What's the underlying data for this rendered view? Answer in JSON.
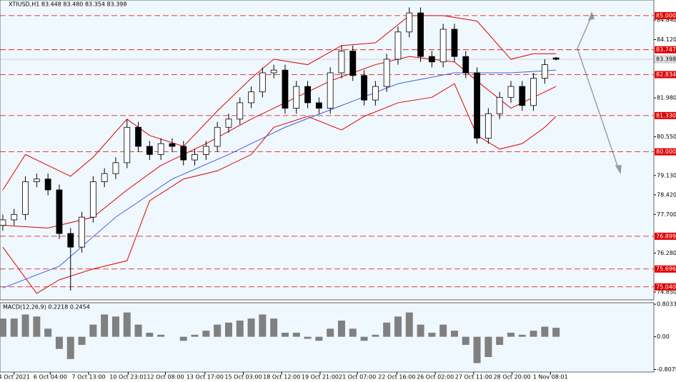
{
  "chart_data": [
    {
      "type": "candlestick",
      "title": "XTIUSD,H1 83.448 83.480 83.354 83.398",
      "x": [
        0,
        1,
        2,
        3,
        4,
        5,
        6,
        7,
        8,
        9,
        10,
        11,
        12,
        13,
        14,
        15,
        16,
        17,
        18,
        19,
        20,
        21,
        22,
        23,
        24,
        25,
        26,
        27,
        28,
        29,
        30,
        31,
        32,
        33,
        34,
        35,
        36,
        37,
        38,
        39,
        40,
        41,
        42,
        43,
        44,
        45,
        46,
        47,
        48,
        49
      ],
      "open": [
        77.3,
        77.5,
        77.7,
        78.9,
        79.0,
        78.6,
        77.0,
        76.5,
        77.6,
        78.9,
        79.2,
        79.6,
        80.9,
        80.2,
        79.9,
        80.3,
        80.2,
        79.7,
        79.9,
        80.2,
        80.9,
        81.2,
        81.8,
        82.2,
        82.9,
        83.0,
        81.6,
        82.4,
        81.8,
        81.6,
        82.9,
        83.7,
        82.8,
        81.9,
        82.4,
        83.4,
        84.4,
        85.1,
        83.5,
        83.3,
        84.5,
        83.5,
        82.9,
        80.5,
        81.4,
        82.0,
        82.4,
        81.7,
        82.7,
        83.448
      ],
      "high": [
        77.7,
        77.9,
        79.1,
        79.2,
        79.2,
        78.8,
        77.2,
        77.8,
        79.1,
        79.4,
        79.8,
        81.2,
        81.1,
        80.4,
        80.5,
        80.5,
        80.4,
        80.1,
        80.4,
        81.1,
        81.4,
        82.0,
        82.4,
        83.1,
        83.2,
        83.2,
        82.6,
        82.6,
        82.0,
        83.1,
        83.9,
        83.9,
        83.0,
        82.6,
        83.6,
        84.6,
        85.3,
        85.3,
        83.7,
        84.7,
        84.7,
        83.7,
        83.1,
        81.6,
        82.2,
        82.6,
        82.6,
        82.9,
        83.4,
        83.48
      ],
      "low": [
        77.1,
        77.3,
        77.5,
        78.7,
        78.4,
        76.8,
        74.9,
        76.3,
        77.4,
        78.7,
        79.0,
        79.4,
        80.0,
        79.7,
        79.7,
        80.0,
        79.5,
        79.5,
        79.7,
        80.0,
        80.7,
        81.0,
        81.6,
        82.0,
        82.7,
        81.4,
        81.4,
        81.6,
        81.4,
        81.4,
        82.7,
        82.6,
        81.7,
        81.7,
        82.2,
        83.2,
        84.2,
        83.3,
        83.1,
        83.1,
        83.3,
        82.7,
        80.3,
        80.3,
        81.2,
        81.8,
        81.5,
        81.5,
        82.5,
        83.354
      ],
      "close": [
        77.5,
        77.7,
        78.9,
        79.0,
        78.6,
        77.0,
        76.5,
        77.6,
        78.9,
        79.2,
        79.6,
        80.9,
        80.2,
        79.9,
        80.3,
        80.2,
        79.7,
        79.9,
        80.2,
        80.9,
        81.2,
        81.8,
        82.2,
        82.9,
        83.0,
        81.6,
        82.4,
        81.8,
        81.6,
        82.9,
        83.7,
        82.8,
        81.9,
        82.4,
        83.4,
        84.4,
        85.1,
        83.5,
        83.3,
        84.5,
        83.5,
        82.9,
        80.5,
        81.4,
        82.0,
        82.4,
        81.7,
        82.7,
        83.2,
        83.398
      ],
      "lines": [
        {
          "color": "#e00000",
          "x": [
            0,
            2,
            4,
            6,
            8,
            11,
            13,
            16,
            19,
            22,
            24,
            27,
            30,
            33,
            36,
            39,
            42,
            45,
            47,
            49
          ],
          "values": [
            78.6,
            79.9,
            79.5,
            79.1,
            79.8,
            81.2,
            80.6,
            80.2,
            81.5,
            82.7,
            83.4,
            83.2,
            83.9,
            84.0,
            85.0,
            85.0,
            84.8,
            83.4,
            83.6,
            83.6
          ]
        },
        {
          "color": "#e00000",
          "x": [
            0,
            4,
            8,
            11,
            14,
            18,
            22,
            25,
            29,
            33,
            36,
            40,
            42,
            45,
            47,
            49
          ],
          "values": [
            77.3,
            77.2,
            77.6,
            78.6,
            79.5,
            80.3,
            81.2,
            81.8,
            82.6,
            83.2,
            83.5,
            83.3,
            82.6,
            81.6,
            82.0,
            82.4
          ]
        },
        {
          "color": "#e00000",
          "x": [
            0,
            3,
            5,
            8,
            11,
            13,
            16,
            19,
            22,
            24,
            27,
            30,
            32,
            35,
            38,
            40,
            42,
            44,
            46,
            48,
            49
          ],
          "values": [
            76.5,
            74.8,
            75.3,
            75.7,
            76.0,
            78.2,
            79.0,
            79.3,
            79.9,
            80.9,
            81.3,
            80.8,
            81.3,
            81.8,
            82.0,
            82.5,
            80.6,
            80.1,
            80.3,
            80.9,
            81.3
          ]
        },
        {
          "color": "#4060e0",
          "x": [
            0,
            5,
            10,
            15,
            20,
            25,
            30,
            35,
            40,
            45,
            49
          ],
          "values": [
            75.0,
            75.8,
            77.6,
            79.0,
            79.9,
            80.9,
            81.7,
            82.5,
            82.9,
            82.9,
            83.0
          ]
        }
      ],
      "levels": [
        {
          "value": 85.0,
          "label": "85.000"
        },
        {
          "value": 83.747,
          "label": "83.747"
        },
        {
          "value": 82.834,
          "label": "82.834"
        },
        {
          "value": 81.33,
          "label": "81.330"
        },
        {
          "value": 80.0,
          "label": "80.000"
        },
        {
          "value": 76.899,
          "label": "76.899"
        },
        {
          "value": 75.696,
          "label": "75.696"
        },
        {
          "value": 75.04,
          "label": "75.040"
        }
      ],
      "level_color": "#e00000",
      "last_price": {
        "value": 83.398,
        "label": "83.398"
      },
      "xlim": [
        -0.25,
        57.66
      ],
      "ylim": [
        74.562,
        85.574
      ],
      "yticks": [
        {
          "value": 84.84,
          "label": "84.840"
        },
        {
          "value": 84.12,
          "label": "84.120"
        },
        {
          "value": 81.98,
          "label": "81.980"
        },
        {
          "value": 80.55,
          "label": "80.550"
        },
        {
          "value": 79.13,
          "label": "79.130"
        },
        {
          "value": 78.42,
          "label": "78.420"
        },
        {
          "value": 77.7,
          "label": "77.700"
        },
        {
          "value": 76.28,
          "label": "76.280"
        },
        {
          "value": 74.85,
          "label": "74.850"
        }
      ],
      "xticks": [
        {
          "value": 1.0,
          "label": "4 Oct 2021"
        },
        {
          "value": 4.2,
          "label": "6 Oct 04:00"
        },
        {
          "value": 7.6,
          "label": "7 Oct 13:00"
        },
        {
          "value": 11.1,
          "label": "10 Oct 23:01"
        },
        {
          "value": 14.4,
          "label": "12 Oct 08:00"
        },
        {
          "value": 17.9,
          "label": "13 Oct 17:00"
        },
        {
          "value": 21.3,
          "label": "15 Oct 03:00"
        },
        {
          "value": 24.7,
          "label": "18 Oct 12:00"
        },
        {
          "value": 28.1,
          "label": "19 Oct 21:00"
        },
        {
          "value": 31.4,
          "label": "21 Oct 07:00"
        },
        {
          "value": 34.9,
          "label": "22 Oct 16:00"
        },
        {
          "value": 38.3,
          "label": "26 Oct 02:00"
        },
        {
          "value": 41.7,
          "label": "27 Oct 11:00"
        },
        {
          "value": 45.1,
          "label": "28 Oct 20:00"
        },
        {
          "value": 48.5,
          "label": "1 Nov 08:01"
        }
      ]
    },
    {
      "type": "macd",
      "title": "MACD(12,26,9) 0.2218 0.2454",
      "color": "#808080",
      "x": [
        0,
        1,
        2,
        3,
        4,
        5,
        6,
        7,
        8,
        9,
        10,
        11,
        12,
        13,
        14,
        15,
        16,
        17,
        18,
        19,
        20,
        21,
        22,
        23,
        24,
        25,
        26,
        27,
        28,
        29,
        30,
        31,
        32,
        33,
        34,
        35,
        36,
        37,
        38,
        39,
        40,
        41,
        42,
        43,
        44,
        45,
        46,
        47,
        48,
        49
      ],
      "values": [
        0.45,
        0.45,
        0.55,
        0.5,
        0.2,
        -0.3,
        -0.55,
        -0.2,
        0.3,
        0.55,
        0.5,
        0.6,
        0.3,
        0.1,
        0.05,
        0,
        -0.1,
        0.05,
        0.15,
        0.3,
        0.35,
        0.4,
        0.45,
        0.55,
        0.45,
        0.1,
        0.1,
        -0.05,
        -0.1,
        0.2,
        0.4,
        0.2,
        -0.1,
        0.05,
        0.35,
        0.5,
        0.6,
        0.3,
        0.1,
        0.3,
        0.15,
        -0.2,
        -0.65,
        -0.5,
        -0.2,
        0.1,
        0.05,
        0.15,
        0.25,
        0.2218
      ],
      "xlim": [
        -0.25,
        57.66
      ],
      "ylim": [
        -0.87,
        0.84
      ],
      "yticks": [
        0.8033,
        {
          "value": 0,
          "label": "0.00"
        },
        -0.8075
      ]
    }
  ]
}
